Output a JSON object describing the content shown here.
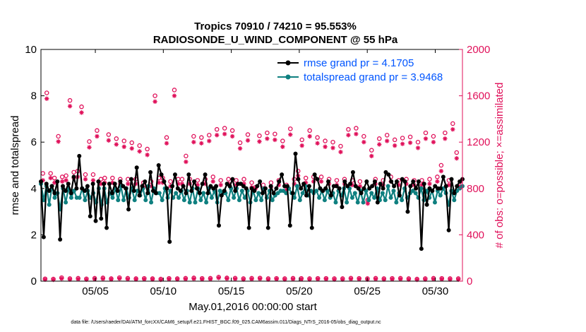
{
  "chart_data": {
    "type": "line",
    "title_line1": "Tropics 70910 / 74210 = 95.553%",
    "title_line2": "RADIOSONDE_U_WIND_COMPONENT @ 55 hPa",
    "xlabel": "May.01,2016 00:00:00 start",
    "ylabel_left": "rmse and totalspread",
    "ylabel_right": "# of obs: o=possible; ×=assimilated",
    "footer": "data file: /Users/raeder/DAI/ATM_forcXX/CAM6_setup/f.e21.FHIST_BGC.f09_025.CAM6assim.011/Diags_NTrS_2016-05/obs_diag_output.nc",
    "x_range": [
      1.0,
      32.0
    ],
    "ylim_left": [
      0,
      10
    ],
    "ylim_right": [
      0,
      2000
    ],
    "x_ticks": [
      5,
      10,
      15,
      20,
      25,
      30
    ],
    "x_tick_labels": [
      "05/05",
      "05/10",
      "05/15",
      "05/20",
      "05/25",
      "05/30"
    ],
    "y_left_ticks": [
      0,
      2,
      4,
      6,
      8,
      10
    ],
    "y_left_tick_labels": [
      "0",
      "2",
      "4",
      "6",
      "8",
      "10"
    ],
    "y_right_ticks": [
      0,
      400,
      800,
      1200,
      1600,
      2000
    ],
    "y_right_tick_labels": [
      "0",
      "400",
      "800",
      "1200",
      "1600",
      "2000"
    ],
    "colors": {
      "rmse": "#000000",
      "spread": "#0f8080",
      "obs": "#e0105a",
      "legend_text": "#0055ff"
    },
    "legend": [
      {
        "label": "rmse grand pr = 4.1705",
        "series": "rmse"
      },
      {
        "label": "totalspread grand pr = 3.9468",
        "series": "spread"
      }
    ],
    "legend_position": "top-right",
    "series": [
      {
        "name": "rmse",
        "values": [
          4.3,
          1.9,
          4.2,
          3.9,
          4.1,
          3.8,
          4.3,
          1.8,
          4.1,
          3.9,
          4.2,
          3.8,
          4.5,
          4.0,
          5.4,
          4.0,
          3.9,
          4.1,
          2.8,
          4.2,
          2.6,
          4.3,
          2.7,
          4.2,
          2.3,
          4.2,
          3.8,
          4.2,
          3.9,
          4.3,
          4.1,
          4.0,
          3.1,
          4.4,
          3.9,
          4.9,
          3.7,
          4.1,
          4.3,
          3.8,
          4.7,
          3.9,
          3.8,
          5.0,
          4.6,
          4.3,
          4.0,
          1.7,
          4.1,
          4.6,
          4.0,
          3.9,
          4.1,
          3.8,
          4.6,
          3.9,
          4.3,
          4.0,
          3.8,
          4.2,
          4.6,
          3.8,
          4.1,
          4.0,
          4.1,
          2.4,
          3.7,
          3.9,
          4.2,
          4.1,
          4.4,
          3.9,
          4.2,
          4.2,
          4.1,
          4.0,
          2.3,
          4.0,
          3.9,
          4.1,
          4.3,
          3.8,
          4.0,
          2.3,
          4.1,
          3.8,
          4.0,
          4.3,
          4.6,
          4.1,
          4.1,
          2.4,
          3.8,
          5.5,
          4.4,
          4.0,
          4.2,
          3.7,
          4.1,
          2.3,
          4.6,
          4.4,
          4.0,
          3.9,
          4.0,
          4.3,
          3.7,
          4.1,
          4.1,
          4.0,
          3.2,
          4.3,
          4.1,
          4.2,
          4.7,
          4.1,
          4.0,
          3.8,
          4.0,
          4.3,
          4.0,
          4.1,
          4.3,
          3.4,
          4.2,
          4.0,
          4.7,
          4.6,
          4.3,
          4.1,
          4.3,
          3.7,
          4.4,
          4.3,
          3.0,
          4.1,
          4.3,
          4.0,
          4.3,
          1.4,
          4.2,
          3.3,
          4.0,
          3.9,
          4.1,
          4.0,
          4.0,
          4.5,
          4.1,
          2.2,
          4.4,
          3.8,
          4.1,
          4.3,
          4.4
        ]
      },
      {
        "name": "totalspread",
        "values": [
          4.2,
          3.5,
          4.1,
          3.3,
          4.1,
          3.6,
          3.8,
          3.1,
          4.0,
          3.4,
          4.0,
          3.6,
          3.9,
          3.6,
          3.6,
          4.0,
          3.5,
          3.9,
          3.6,
          3.8,
          3.4,
          4.0,
          3.3,
          4.0,
          3.4,
          3.8,
          3.6,
          4.0,
          3.5,
          4.1,
          3.5,
          4.0,
          3.6,
          4.0,
          3.5,
          3.9,
          3.7,
          4.0,
          3.5,
          4.1,
          3.4,
          4.0,
          3.8,
          3.8,
          3.5,
          4.0,
          3.6,
          3.9,
          3.6,
          3.8,
          3.6,
          3.9,
          3.5,
          3.9,
          3.4,
          4.0,
          3.4,
          4.0,
          3.5,
          3.8,
          3.4,
          4.0,
          3.6,
          3.9,
          3.4,
          3.9,
          3.8,
          3.8,
          3.5,
          4.0,
          3.6,
          4.0,
          3.5,
          3.9,
          3.6,
          3.9,
          3.4,
          3.9,
          3.5,
          3.8,
          3.5,
          4.0,
          3.6,
          3.9,
          3.5,
          3.7,
          3.8,
          3.9,
          3.9,
          3.8,
          4.0,
          3.8,
          3.6,
          4.1,
          3.5,
          3.8,
          4.1,
          3.7,
          3.9,
          3.8,
          3.9,
          3.6,
          3.9,
          3.5,
          3.9,
          3.6,
          3.8,
          3.4,
          3.9,
          3.7,
          4.0,
          3.4,
          4.0,
          3.6,
          3.8,
          3.4,
          3.9,
          3.4,
          3.9,
          3.5,
          3.8,
          3.6,
          4.0,
          3.5,
          3.8,
          3.5,
          4.1,
          3.6,
          3.9,
          3.4,
          3.8,
          3.5,
          4.0,
          3.6,
          3.8,
          3.9,
          3.8,
          3.6,
          4.0,
          3.5,
          3.9,
          3.6,
          3.9,
          3.4,
          3.9,
          3.7,
          4.0,
          3.8,
          3.3,
          3.9,
          3.5,
          3.9,
          4.0,
          4.1
        ]
      },
      {
        "name": "obs_possible",
        "values": [
          930,
          1625,
          930,
          890,
          1250,
          900,
          910,
          1560,
          940,
          950,
          1505,
          920,
          1205,
          920,
          1300,
          880,
          890,
          1265,
          890,
          1230,
          880,
          1210,
          880,
          1195,
          880,
          1170,
          850,
          1140,
          860,
          1600,
          890,
          890,
          1240,
          860,
          1650,
          880,
          880,
          1080,
          880,
          1250,
          870,
          1240,
          880,
          1260,
          900,
          1310,
          870,
          1320,
          880,
          1300,
          870,
          1195,
          880,
          1265,
          850,
          810,
          1255,
          830,
          1280,
          850,
          1270,
          870,
          1210,
          830,
          1315,
          880,
          950,
          1220,
          890,
          1300,
          900,
          1240,
          900,
          1210,
          880,
          1200,
          870,
          1165,
          880,
          1310,
          870,
          1320,
          860,
          1250,
          700,
          1130,
          880,
          1230,
          870,
          1260,
          900,
          1220,
          870,
          1235,
          880,
          1245,
          870,
          1200,
          870,
          1280,
          880,
          1250,
          900,
          1000,
          1280,
          870,
          1360,
          1110,
          860
        ]
      },
      {
        "name": "obs_assimilated",
        "values": [
          870,
          1575,
          890,
          850,
          1205,
          860,
          870,
          1510,
          890,
          900,
          1455,
          880,
          1155,
          870,
          1250,
          840,
          850,
          1215,
          850,
          1180,
          840,
          1160,
          840,
          1145,
          840,
          1120,
          810,
          1090,
          820,
          1550,
          850,
          850,
          1190,
          820,
          1600,
          840,
          840,
          1030,
          840,
          1200,
          830,
          1190,
          840,
          1210,
          860,
          1260,
          830,
          1270,
          840,
          1250,
          830,
          1145,
          840,
          1215,
          810,
          800,
          1205,
          790,
          1230,
          810,
          1220,
          830,
          1160,
          790,
          1265,
          840,
          910,
          1170,
          850,
          1250,
          860,
          1190,
          860,
          1160,
          840,
          1150,
          830,
          1115,
          840,
          1260,
          830,
          1270,
          820,
          1200,
          670,
          1080,
          840,
          1180,
          830,
          1210,
          860,
          1170,
          830,
          1185,
          840,
          1195,
          830,
          1150,
          830,
          1230,
          840,
          1200,
          860,
          950,
          1230,
          830,
          1310,
          1060,
          820
        ]
      },
      {
        "name": "obs_low_possible",
        "values": [
          20,
          18,
          30,
          22,
          25,
          20,
          25,
          28,
          22,
          30,
          25,
          22,
          24,
          22,
          18,
          24,
          22,
          25,
          28,
          24,
          25,
          35,
          28,
          26,
          22,
          25,
          27,
          22,
          24,
          22,
          25,
          24,
          22,
          24,
          24,
          22,
          22,
          26,
          24,
          22,
          25,
          22,
          24,
          25,
          22,
          18,
          22,
          25,
          24,
          22,
          22
        ]
      },
      {
        "name": "obs_low_assimilated",
        "values": [
          14,
          12,
          22,
          15,
          18,
          14,
          18,
          20,
          16,
          22,
          18,
          16,
          17,
          16,
          12,
          18,
          16,
          18,
          20,
          17,
          18,
          28,
          22,
          19,
          15,
          18,
          20,
          15,
          18,
          15,
          18,
          17,
          15,
          18,
          18,
          15,
          15,
          19,
          18,
          15,
          18,
          15,
          17,
          18,
          15,
          12,
          15,
          18,
          17,
          15,
          15
        ]
      }
    ]
  }
}
